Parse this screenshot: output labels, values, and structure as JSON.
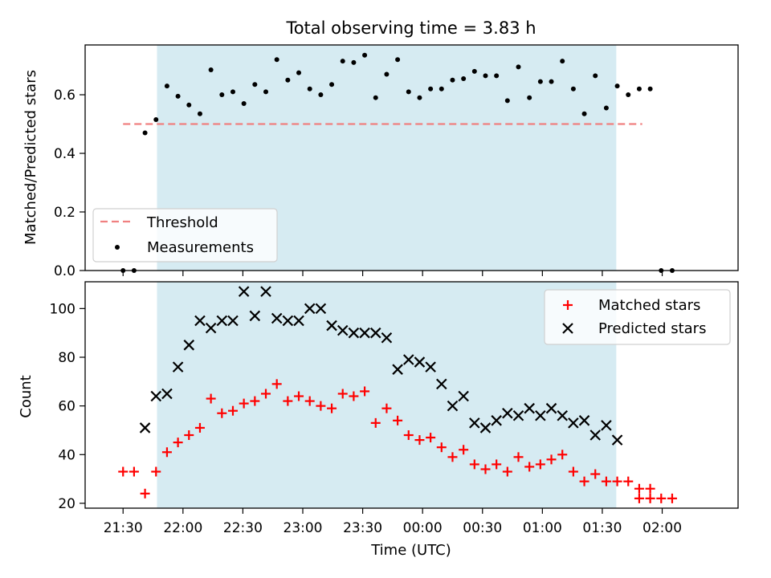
{
  "figure_title": "Total observing time = 3.83 h",
  "colors": {
    "shade": "#add8e6",
    "threshold": "#f08080",
    "measurement": "#000000",
    "matched": "#ff0000",
    "predicted": "#000000"
  },
  "chart_data": [
    {
      "type": "scatter",
      "title": "Total observing time = 3.83 h",
      "xlabel": "",
      "ylabel": "Matched/Predicted stars",
      "x_unit": "minutes after 21:30 UTC",
      "xlim": [
        -19,
        308
      ],
      "ylim": [
        0,
        0.77
      ],
      "yticks": [
        0.0,
        0.2,
        0.4,
        0.6
      ],
      "ytick_labels": [
        "0.0",
        "0.2",
        "0.4",
        "0.6"
      ],
      "shaded_span_x": [
        17,
        247
      ],
      "legend_position": "lower-left",
      "threshold": {
        "name": "Threshold",
        "y": 0.5,
        "x_range": [
          0,
          260
        ],
        "style": "dashed"
      },
      "measurements": {
        "name": "Measurements",
        "x": [
          0,
          5.5,
          11,
          16.5,
          22,
          27.5,
          33,
          38.5,
          44,
          49.5,
          55,
          60.5,
          66,
          71.5,
          77,
          82.5,
          88,
          93.5,
          99,
          104.5,
          110,
          115.5,
          121,
          126.5,
          132,
          137.5,
          143,
          148.5,
          154,
          159.5,
          165,
          170.5,
          176,
          181.5,
          187,
          192.5,
          198,
          203.5,
          209,
          214.5,
          220,
          225.5,
          231,
          236.5,
          242,
          247.5,
          253,
          258.5,
          264
        ],
        "y": [
          0.0,
          0.0,
          0.47,
          0.515,
          0.63,
          0.595,
          0.565,
          0.535,
          0.685,
          0.6,
          0.61,
          0.57,
          0.635,
          0.61,
          0.72,
          0.65,
          0.675,
          0.62,
          0.6,
          0.635,
          0.715,
          0.71,
          0.735,
          0.59,
          0.67,
          0.72,
          0.61,
          0.59,
          0.62,
          0.62,
          0.65,
          0.655,
          0.68,
          0.665,
          0.665,
          0.58,
          0.695,
          0.59,
          0.645,
          0.645,
          0.715,
          0.62,
          0.535,
          0.665,
          0.555,
          0.63,
          0.6,
          0.62,
          0.62
        ]
      }
    },
    {
      "type": "scatter",
      "title": "",
      "xlabel": "Time (UTC)",
      "ylabel": "Count",
      "x_unit": "minutes after 21:30 UTC",
      "xlim": [
        -19,
        308
      ],
      "ylim": [
        18,
        111
      ],
      "xticks": [
        0,
        30,
        60,
        90,
        120,
        150,
        180,
        210,
        240,
        270
      ],
      "xtick_labels": [
        "21:30",
        "22:00",
        "22:30",
        "23:00",
        "23:30",
        "00:00",
        "00:30",
        "01:00",
        "01:30",
        "02:00"
      ],
      "yticks": [
        20,
        40,
        60,
        80,
        100
      ],
      "ytick_labels": [
        "20",
        "40",
        "60",
        "80",
        "100"
      ],
      "shaded_span_x": [
        17,
        247
      ],
      "legend_position": "top-right",
      "series": [
        {
          "name": "Matched stars",
          "marker": "+",
          "x": [
            0,
            5.5,
            11,
            16.5,
            22,
            27.5,
            33,
            38.5,
            44,
            49.5,
            55,
            60.5,
            66,
            71.5,
            77,
            82.5,
            88,
            93.5,
            99,
            104.5,
            110,
            115.5,
            121,
            126.5,
            132,
            137.5,
            143,
            148.5,
            154,
            159.5,
            165,
            170.5,
            176,
            181.5,
            187,
            192.5,
            198,
            203.5,
            209,
            214.5,
            220,
            225.5,
            231,
            236.5,
            242,
            247.5,
            253,
            258.5,
            264
          ],
          "y": [
            33,
            33,
            24,
            33,
            41,
            45,
            48,
            51,
            63,
            57,
            58,
            61,
            62,
            65,
            69,
            62,
            64,
            62,
            60,
            59,
            65,
            64,
            66,
            53,
            59,
            54,
            48,
            46,
            47,
            43,
            39,
            42,
            36,
            34,
            36,
            33,
            39,
            35,
            36,
            38,
            40,
            33,
            29,
            32,
            29,
            29,
            29,
            26,
            26
          ]
        },
        {
          "name": "Predicted stars",
          "marker": "x",
          "x": [
            11,
            16.5,
            22,
            27.5,
            33,
            38.5,
            44,
            49.5,
            55,
            60.5,
            66,
            71.5,
            77,
            82.5,
            88,
            93.5,
            99,
            104.5,
            110,
            115.5,
            121,
            126.5,
            132,
            137.5,
            143,
            148.5,
            154,
            159.5,
            165,
            170.5,
            176,
            181.5,
            187,
            192.5,
            198,
            203.5,
            209,
            214.5,
            220,
            225.5,
            231,
            236.5,
            242,
            247.5
          ],
          "y": [
            51,
            64,
            65,
            76,
            85,
            95,
            92,
            95,
            95,
            107,
            97,
            107,
            96,
            95,
            95,
            100,
            100,
            93,
            91,
            90,
            90,
            90,
            88,
            75,
            79,
            78,
            76,
            69,
            60,
            64,
            53,
            51,
            54,
            57,
            56,
            59,
            56,
            59,
            56,
            53,
            54,
            48,
            52,
            46
          ]
        }
      ],
      "extra_matched_tail": {
        "x": [
          258.5,
          264,
          269.5,
          275
        ],
        "y": [
          22,
          22,
          22,
          22
        ]
      }
    }
  ]
}
